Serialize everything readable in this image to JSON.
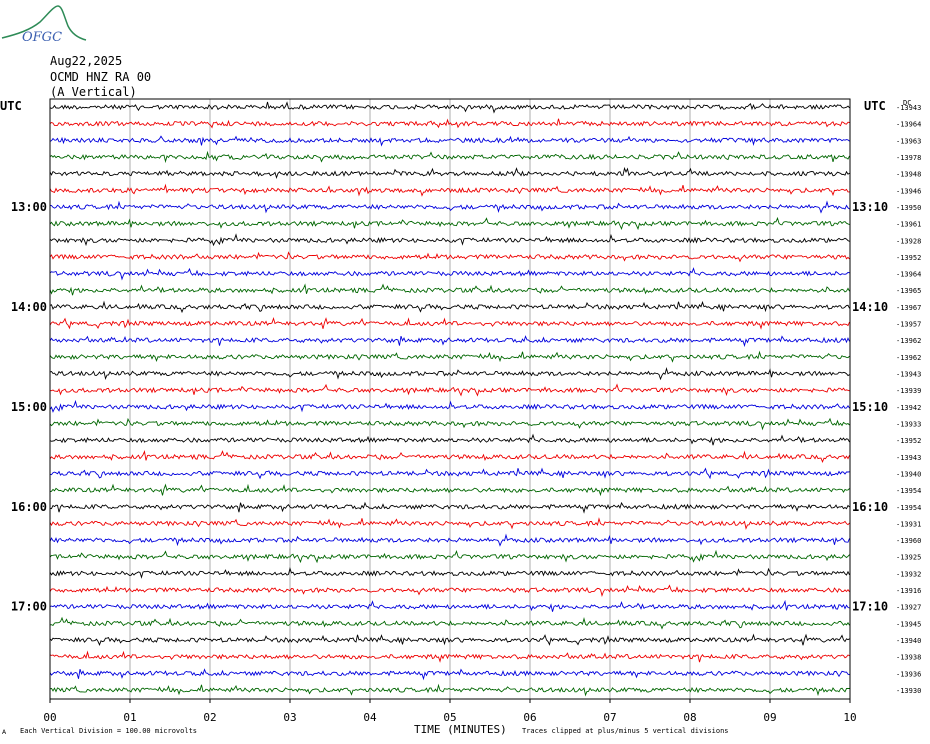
{
  "header": {
    "logo_text": "OFGC",
    "date": "Aug22,2025",
    "station": "OCMD HNZ RA 00",
    "component": "(A Vertical)"
  },
  "footer": {
    "scale_note": "Each Vertical Division =  100.00 microvolts",
    "clip_note": "Traces clipped at plus/minus 5 vertical divisions",
    "corner_mark": "A"
  },
  "chart_data": {
    "type": "line",
    "title": "",
    "xlabel": "TIME (MINUTES)",
    "ylabel": "",
    "xlim": [
      0,
      10
    ],
    "x_ticks": [
      "00",
      "01",
      "02",
      "03",
      "04",
      "05",
      "06",
      "07",
      "08",
      "09",
      "10"
    ],
    "left_axis_label": "UTC",
    "right_axis_label": "UTC",
    "right_top_label": "DC",
    "left_time_labels": [
      {
        "row": 6,
        "label": "13:00"
      },
      {
        "row": 12,
        "label": "14:00"
      },
      {
        "row": 18,
        "label": "15:00"
      },
      {
        "row": 24,
        "label": "16:00"
      },
      {
        "row": 30,
        "label": "17:00"
      }
    ],
    "right_time_labels": [
      {
        "row": 6,
        "label": "13:10"
      },
      {
        "row": 12,
        "label": "14:10"
      },
      {
        "row": 18,
        "label": "15:10"
      },
      {
        "row": 24,
        "label": "16:10"
      },
      {
        "row": 30,
        "label": "17:10"
      }
    ],
    "trace_colors": [
      "#000000",
      "#ee0000",
      "#0000dd",
      "#006600"
    ],
    "dc_offsets": [
      "-13943",
      "-13964",
      "-13963",
      "-13978",
      "-13948",
      "-13946",
      "-13950",
      "-13961",
      "-13928",
      "-13952",
      "-13964",
      "-13965",
      "-13967",
      "-13957",
      "-13962",
      "-13962",
      "-13943",
      "-13939",
      "-13942",
      "-13933",
      "-13952",
      "-13943",
      "-13940",
      "-13954",
      "-13954",
      "-13931",
      "-13960",
      "-13925",
      "-13932",
      "-13916",
      "-13927",
      "-13945",
      "-13940",
      "-13938",
      "-13936",
      "-13930"
    ],
    "rows": 36,
    "grid": true
  }
}
